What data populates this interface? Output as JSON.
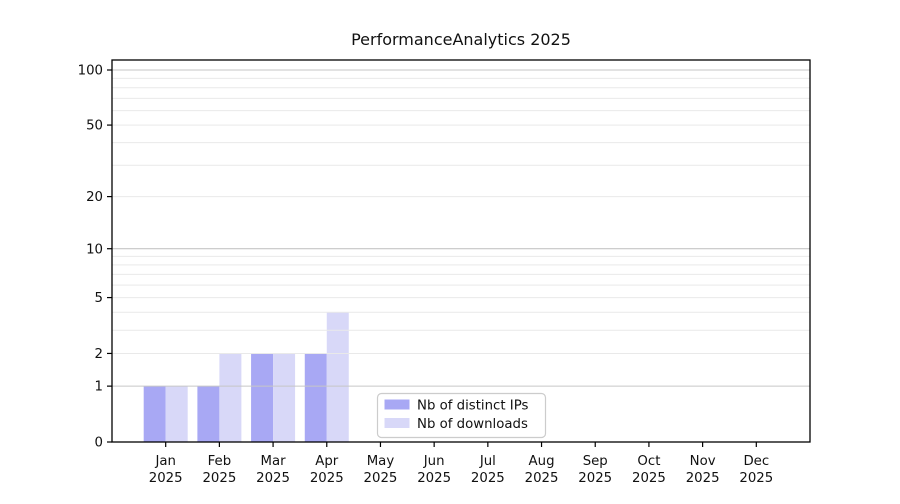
{
  "page": {
    "background": "#ffffff"
  },
  "chart_data": {
    "type": "bar",
    "title": "PerformanceAnalytics 2025",
    "categories": [
      "Jan",
      "Feb",
      "Mar",
      "Apr",
      "May",
      "Jun",
      "Jul",
      "Aug",
      "Sep",
      "Oct",
      "Nov",
      "Dec"
    ],
    "x_label_line2": "2025",
    "series": [
      {
        "name": "Nb of distinct IPs",
        "color": "#a8a8f4",
        "values": [
          1,
          1,
          2,
          2,
          0,
          0,
          0,
          0,
          0,
          0,
          0,
          0
        ]
      },
      {
        "name": "Nb of downloads",
        "color": "#d8d8f8",
        "values": [
          1,
          2,
          2,
          4,
          0,
          0,
          0,
          0,
          0,
          0,
          0,
          0
        ]
      }
    ],
    "y_axis": {
      "scale": "log1p",
      "tick_labels": [
        0,
        1,
        2,
        5,
        10,
        20,
        50,
        100
      ],
      "major_gridlines": [
        1,
        10,
        100
      ],
      "minor_gridlines": [
        2,
        3,
        4,
        5,
        6,
        7,
        8,
        9,
        20,
        30,
        40,
        50,
        60,
        70,
        80,
        90
      ],
      "range": [
        0,
        113
      ]
    },
    "legend": {
      "entries": [
        "Nb of distinct IPs",
        "Nb of downloads"
      ]
    },
    "colors": {
      "major_grid": "#c6c6c6",
      "minor_grid": "#e9e9e9",
      "axis": "#000000",
      "legend_border": "#cccccc"
    }
  }
}
